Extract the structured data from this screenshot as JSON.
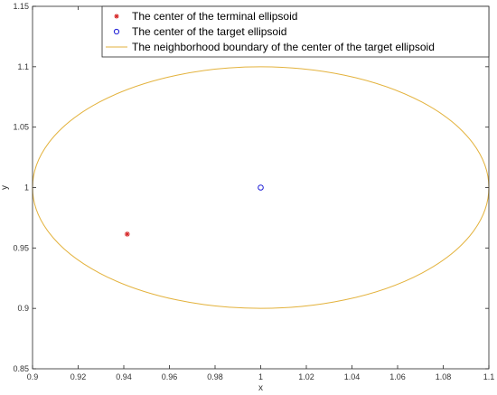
{
  "chart_data": {
    "type": "scatter",
    "xlabel": "x",
    "ylabel": "y",
    "xlim": [
      0.9,
      1.1
    ],
    "ylim": [
      0.85,
      1.15
    ],
    "xticks": [
      0.9,
      0.92,
      0.94,
      0.96,
      0.98,
      1,
      1.02,
      1.04,
      1.06,
      1.08,
      1.1
    ],
    "xtick_labels": [
      "0.9",
      "0.92",
      "0.94",
      "0.96",
      "0.98",
      "1",
      "1.02",
      "1.04",
      "1.06",
      "1.08",
      "1.1"
    ],
    "yticks": [
      0.85,
      0.9,
      0.95,
      1,
      1.05,
      1.1,
      1.15
    ],
    "ytick_labels": [
      "0.85",
      "0.9",
      "0.95",
      "1",
      "1.05",
      "1.1",
      "1.15"
    ],
    "grid": false,
    "legend_position": "top-right",
    "series": [
      {
        "name": "The center of the terminal ellipsoid",
        "kind": "marker-star",
        "color": "#d62728",
        "x": [
          0.9415
        ],
        "y": [
          0.9615
        ]
      },
      {
        "name": "The center of the target ellipsoid",
        "kind": "marker-circle",
        "color": "#1f1fd6",
        "x": [
          1.0
        ],
        "y": [
          1.0
        ]
      },
      {
        "name": "The neighborhood boundary of the center of the target ellipsoid",
        "kind": "ellipse",
        "color": "#e3b23c",
        "center": [
          1.0,
          1.0
        ],
        "radius_x": 0.1,
        "radius_y": 0.1
      }
    ]
  }
}
